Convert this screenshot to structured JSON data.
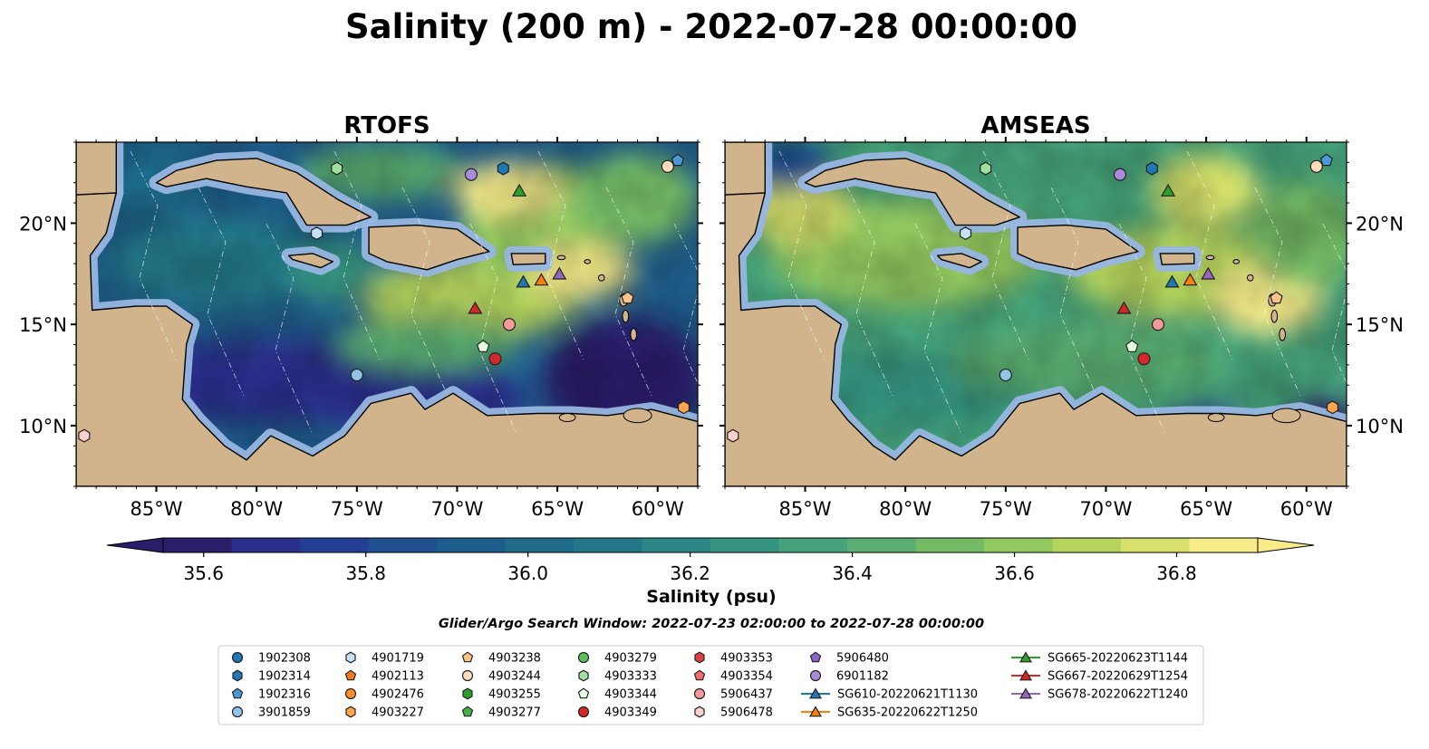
{
  "title": "Salinity (200 m) - 2022-07-28 00:00:00",
  "panels": [
    {
      "id": "rtofs",
      "label": "RTOFS",
      "ylabels": "left"
    },
    {
      "id": "amseas",
      "label": "AMSEAS",
      "ylabels": "right"
    }
  ],
  "map": {
    "lon_range": [
      -89,
      -58
    ],
    "lat_range": [
      7,
      24
    ],
    "lon_ticks": [
      "85°W",
      "80°W",
      "75°W",
      "70°W",
      "65°W",
      "60°W"
    ],
    "lat_ticks": [
      "10°N",
      "15°N",
      "20°N"
    ]
  },
  "colorbar": {
    "label": "Salinity (psu)",
    "ticks": [
      "35.6",
      "35.8",
      "36.0",
      "36.2",
      "36.4",
      "36.6",
      "36.8"
    ],
    "range": [
      35.55,
      36.9
    ],
    "extend": "both",
    "colors": [
      "#2c1d6b",
      "#2a2f8c",
      "#233f95",
      "#1f4f8f",
      "#1c5d8c",
      "#1f6b8a",
      "#237888",
      "#2a8786",
      "#349480",
      "#45a27a",
      "#5aae71",
      "#75bb66",
      "#93c85f",
      "#b5d45d",
      "#d6e06b",
      "#f7eb8a"
    ]
  },
  "search_window": "Glider/Argo Search Window: 2022-07-23 02:00:00 to 2022-07-28 00:00:00",
  "colors": {
    "land": "#d2b48c",
    "shelf": "#97b6e0",
    "border": "#000000"
  },
  "platforms": [
    {
      "name": "1902308",
      "marker": "circle",
      "color": "#1f77b4",
      "lon": -200,
      "lat": -200
    },
    {
      "name": "1902314",
      "marker": "hexagon",
      "color": "#1f77b4",
      "lon": -200,
      "lat": -200
    },
    {
      "name": "1902316",
      "marker": "pentagon",
      "color": "#4a98d8",
      "lon": -59.0,
      "lat": 23.1
    },
    {
      "name": "3901859",
      "marker": "circle",
      "color": "#93c4e8",
      "lon": -75.0,
      "lat": 12.5
    },
    {
      "name": "4901719",
      "marker": "hexagon",
      "color": "#c6e1f4",
      "lon": -77.0,
      "lat": 19.5
    },
    {
      "name": "4902113",
      "marker": "pentagon",
      "color": "#f07a1c",
      "lon": -200,
      "lat": -200
    },
    {
      "name": "4902476",
      "marker": "circle",
      "color": "#ff8c26",
      "lon": -200,
      "lat": -200
    },
    {
      "name": "4903227",
      "marker": "hexagon",
      "color": "#ffa54d",
      "lon": -58.7,
      "lat": 10.9
    },
    {
      "name": "4903238",
      "marker": "pentagon",
      "color": "#ffc38a",
      "lon": -200,
      "lat": -200
    },
    {
      "name": "4903244",
      "marker": "circle",
      "color": "#ffdcbc",
      "lon": -59.5,
      "lat": 22.8
    },
    {
      "name": "4903255",
      "marker": "hexagon",
      "color": "#2ca02c",
      "lon": -200,
      "lat": -200
    },
    {
      "name": "4903277",
      "marker": "pentagon",
      "color": "#45b045",
      "lon": -200,
      "lat": -200
    },
    {
      "name": "4903279",
      "marker": "circle",
      "color": "#58c158",
      "lon": -200,
      "lat": -200
    },
    {
      "name": "4903333",
      "marker": "hexagon",
      "color": "#9ee09e",
      "lon": -76.0,
      "lat": 22.7
    },
    {
      "name": "4903344",
      "marker": "pentagon",
      "color": "#e5ffe0",
      "lon": -68.7,
      "lat": 13.9
    },
    {
      "name": "4903349",
      "marker": "circle",
      "color": "#d62728",
      "lon": -68.1,
      "lat": 13.3
    },
    {
      "name": "4903353",
      "marker": "hexagon",
      "color": "#e0403f",
      "lon": -200,
      "lat": -200
    },
    {
      "name": "4903354",
      "marker": "pentagon",
      "color": "#f26a6a",
      "lon": -200,
      "lat": -200
    },
    {
      "name": "5906437",
      "marker": "circle",
      "color": "#f59a9a",
      "lon": -67.4,
      "lat": 15.0
    },
    {
      "name": "5906478",
      "marker": "hexagon",
      "color": "#ffd0d0",
      "lon": -88.6,
      "lat": 9.5
    },
    {
      "name": "5906480",
      "marker": "pentagon",
      "color": "#8c62c4",
      "lon": -200,
      "lat": -200
    },
    {
      "name": "6901182",
      "marker": "circle",
      "color": "#a98bd8",
      "lon": -69.3,
      "lat": 22.4
    },
    {
      "name": "SG610-20220621T1130",
      "marker": "triangle",
      "color": "#1f77b4",
      "lon": -66.7,
      "lat": 17.1,
      "track": true
    },
    {
      "name": "SG635-20220622T1250",
      "marker": "triangle",
      "color": "#ff7f0e",
      "lon": -65.8,
      "lat": 17.2,
      "track": true
    },
    {
      "name": "SG665-20220623T1144",
      "marker": "triangle",
      "color": "#2ca02c",
      "lon": -66.9,
      "lat": 21.6,
      "track": true
    },
    {
      "name": "SG667-20220629T1254",
      "marker": "triangle",
      "color": "#d62728",
      "lon": -69.1,
      "lat": 15.8,
      "track": true
    },
    {
      "name": "SG678-20220622T1240",
      "marker": "triangle",
      "color": "#9467bd",
      "lon": -64.9,
      "lat": 17.5,
      "track": true
    }
  ],
  "extra_markers": [
    {
      "marker": "hexagon",
      "color": "#1f77b4",
      "lon": -67.7,
      "lat": 22.7
    },
    {
      "marker": "pentagon",
      "color": "#ffc38a",
      "lon": -61.5,
      "lat": 16.3
    }
  ]
}
